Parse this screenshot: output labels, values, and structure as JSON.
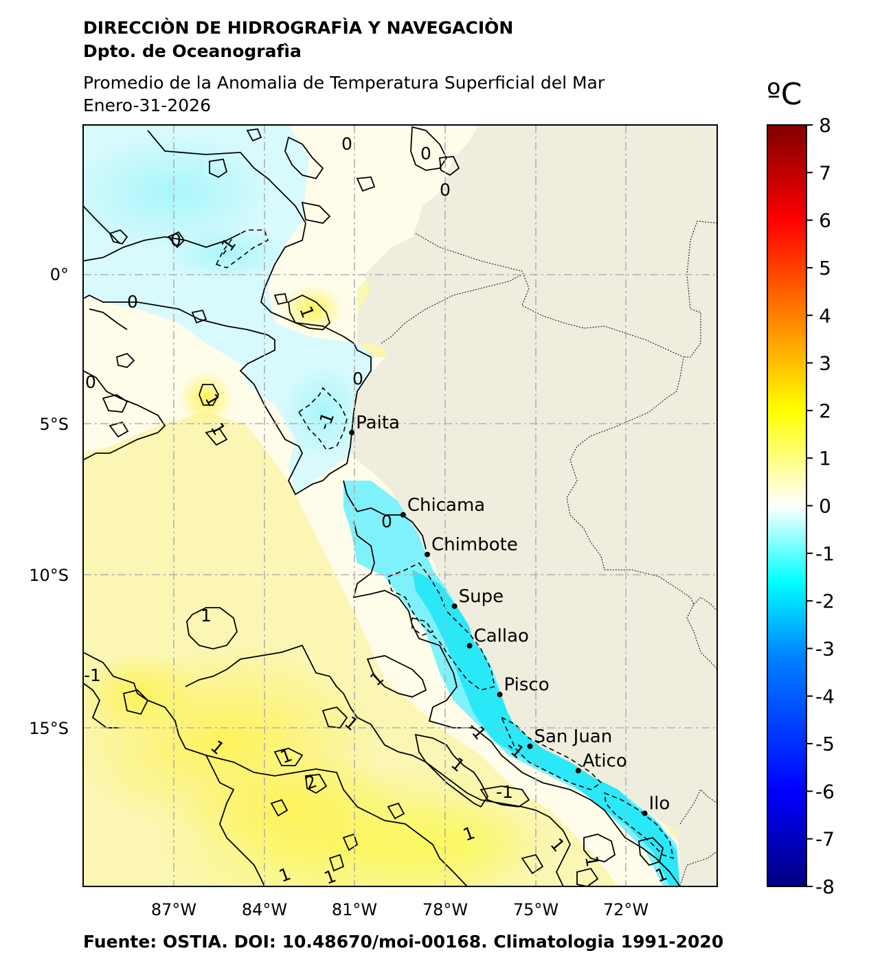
{
  "header": {
    "institution": "DIRECCIÒN DE HIDROGRAFÌA Y NAVEGACIÒN",
    "department": "Dpto. de Oceanografìa",
    "title": "Promedio de la Anomalia de Temperatura Superficial del Mar",
    "date": "Enero-31-2026"
  },
  "map": {
    "extent": {
      "lon_min": -90,
      "lon_max": -69,
      "lat_min": -20,
      "lat_max": 5
    },
    "lon_ticks": [
      "87°W",
      "84°W",
      "81°W",
      "78°W",
      "75°W",
      "72°W"
    ],
    "lat_ticks": [
      "0°",
      "5°S",
      "10°S",
      "15°S"
    ],
    "land_color": "#eeedde",
    "ports": [
      {
        "name": "Paita",
        "lon": -81.1,
        "lat": -5.1
      },
      {
        "name": "Chicama",
        "lon": -79.4,
        "lat": -7.8
      },
      {
        "name": "Chimbote",
        "lon": -78.6,
        "lat": -9.1
      },
      {
        "name": "Supe",
        "lon": -77.7,
        "lat": -10.8
      },
      {
        "name": "Callao",
        "lon": -77.2,
        "lat": -12.1
      },
      {
        "name": "Pisco",
        "lon": -76.2,
        "lat": -13.7
      },
      {
        "name": "San Juan",
        "lon": -75.2,
        "lat": -15.4
      },
      {
        "name": "Atico",
        "lon": -73.6,
        "lat": -16.2
      },
      {
        "name": "Ilo",
        "lon": -71.4,
        "lat": -17.6
      }
    ],
    "contour_labels": [
      "0",
      "-1",
      "1",
      "2"
    ]
  },
  "colorbar": {
    "unit": "ºC",
    "min": -8,
    "max": 8,
    "ticks": [
      "8",
      "7",
      "6",
      "5",
      "4",
      "3",
      "2",
      "1",
      "0",
      "-1",
      "-2",
      "-3",
      "-4",
      "-5",
      "-6",
      "-7",
      "-8"
    ],
    "colors": [
      "#000080",
      "#0000ff",
      "#0080ff",
      "#00ffff",
      "#ffffff",
      "#ffff00",
      "#ff8000",
      "#ff0000",
      "#800000"
    ]
  },
  "footer": {
    "source": "Fuente: OSTIA. DOI: 10.48670/moi-00168. Climatologia 1991-2020"
  }
}
